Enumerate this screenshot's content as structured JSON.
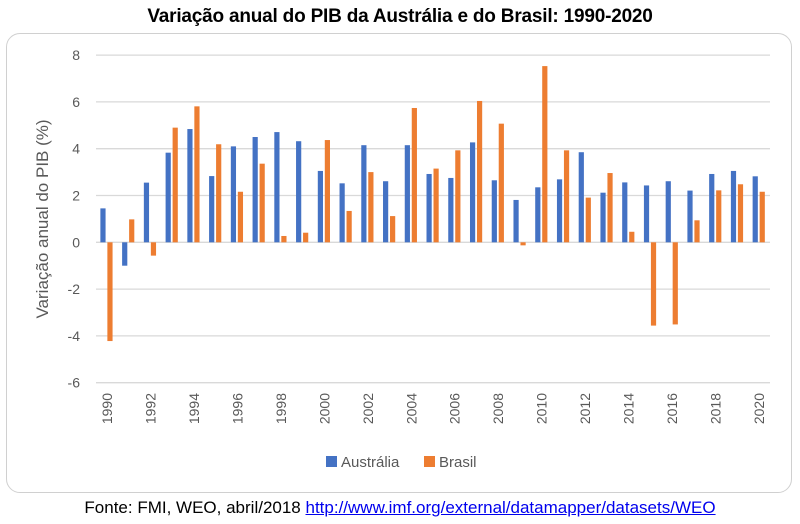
{
  "chart_data": {
    "type": "bar",
    "title": "Variação anual do PIB da Austrália e do Brasil: 1990-2020",
    "xlabel": "",
    "ylabel": "Variação anual do PIB (%)",
    "ylim": [
      -6,
      8
    ],
    "yticks": [
      "8",
      "6",
      "4",
      "2",
      "0",
      "-2",
      "-4",
      "-6"
    ],
    "ytick_values": [
      8,
      6,
      4,
      2,
      0,
      -2,
      -4,
      -6
    ],
    "grid": true,
    "legend_position": "bottom",
    "categories": [
      "1990",
      "1991",
      "1992",
      "1993",
      "1994",
      "1995",
      "1996",
      "1997",
      "1998",
      "1999",
      "2000",
      "2001",
      "2002",
      "2003",
      "2004",
      "2005",
      "2006",
      "2007",
      "2008",
      "2009",
      "2010",
      "2011",
      "2012",
      "2013",
      "2014",
      "2015",
      "2016",
      "2017",
      "2018",
      "2019",
      "2020"
    ],
    "xtick_labels": [
      "1990",
      "1992",
      "1994",
      "1996",
      "1998",
      "2000",
      "2002",
      "2004",
      "2006",
      "2008",
      "2010",
      "2012",
      "2014",
      "2016",
      "2018",
      "2020"
    ],
    "series": [
      {
        "name": "Austrália",
        "color": "#4472C4",
        "values": [
          1.45,
          -1.0,
          2.55,
          3.83,
          4.84,
          2.83,
          4.1,
          4.5,
          4.71,
          4.32,
          3.05,
          2.52,
          4.15,
          2.61,
          4.15,
          2.92,
          2.75,
          4.27,
          2.65,
          1.81,
          2.35,
          2.69,
          3.85,
          2.12,
          2.56,
          2.43,
          2.61,
          2.21,
          2.92,
          3.05,
          2.82
        ]
      },
      {
        "name": "Brasil",
        "color": "#ED7D31",
        "values": [
          -4.22,
          0.98,
          -0.57,
          4.9,
          5.81,
          4.19,
          2.16,
          3.36,
          0.27,
          0.41,
          4.37,
          1.34,
          3.0,
          1.12,
          5.74,
          3.15,
          3.93,
          6.04,
          5.07,
          -0.13,
          7.53,
          3.93,
          1.91,
          2.96,
          0.45,
          -3.56,
          -3.51,
          0.94,
          2.22,
          2.48,
          2.16
        ]
      }
    ]
  },
  "source": {
    "text": "Fonte: FMI, WEO, abril/2018",
    "link": "http://www.imf.org/external/datamapper/datasets/WEO"
  }
}
